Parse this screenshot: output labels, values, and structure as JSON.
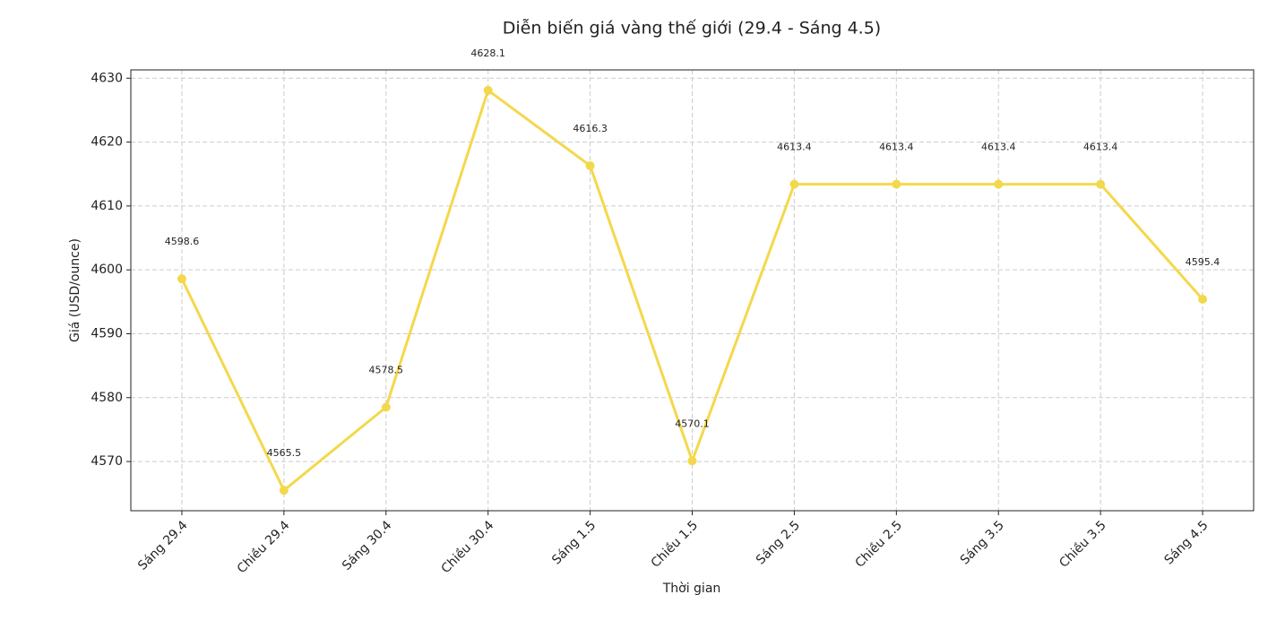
{
  "chart_data": {
    "type": "line",
    "title": "Diễn biến giá vàng thế giới (29.4 - Sáng 4.5)",
    "x_label": "Thời gian",
    "y_label": "Giá (USD/ounce)",
    "categories": [
      "Sáng 29.4",
      "Chiều 29.4",
      "Sáng 30.4",
      "Chiều 30.4",
      "Sáng 1.5",
      "Chiều 1.5",
      "Sáng 2.5",
      "Chiều 2.5",
      "Sáng 3.5",
      "Chiều 3.5",
      "Sáng 4.5"
    ],
    "values": [
      4598.6,
      4565.5,
      4578.5,
      4628.1,
      4616.3,
      4570.1,
      4613.4,
      4613.4,
      4613.4,
      4613.4,
      4595.4
    ],
    "color": "#f4d84c",
    "ylim": [
      4562.3,
      4631.3
    ],
    "yticks": [
      4570,
      4580,
      4590,
      4600,
      4610,
      4620,
      4630
    ],
    "grid": true
  }
}
